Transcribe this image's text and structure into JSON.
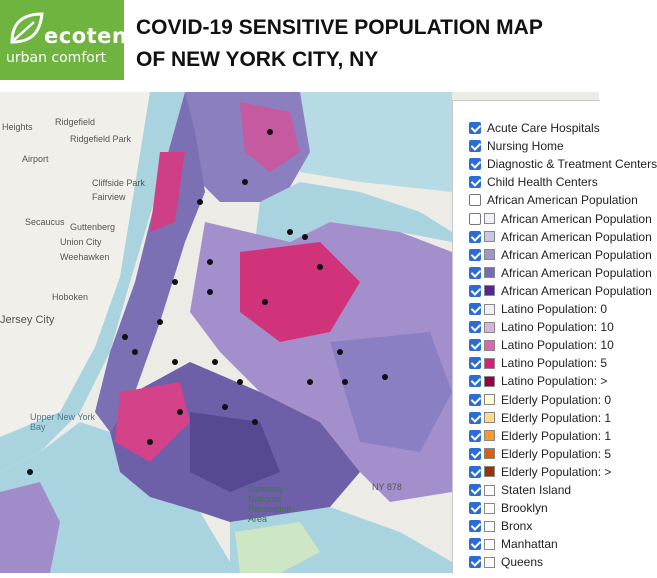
{
  "brand": {
    "name_line1": "ecoten",
    "name_line2": "urban comfort",
    "accent": "#6fb43f"
  },
  "title": {
    "line1": "COVID-19 SENSITIVE POPULATION MAP",
    "line2": "OF NEW YORK CITY, NY"
  },
  "map": {
    "place_labels": [
      "Heights",
      "Ridgefield",
      "Ridgefield Park",
      "Airport",
      "Cliffside Park",
      "Fairview",
      "Secaucus",
      "Guttenberg",
      "Union City",
      "Weehawken",
      "Hoboken",
      "Jersey City",
      "Upper New York Bay",
      "Gateway National Recreation Area",
      "NY 878"
    ],
    "colors": {
      "water": "#a9d3df",
      "land": "#ecebe6",
      "park": "#cfe6c4",
      "african_american": "#6d5fa8",
      "latino": "#d1337a"
    }
  },
  "legend": {
    "items": [
      {
        "label": "Acute Care Hospitals",
        "checked": true,
        "swatch": null
      },
      {
        "label": "Nursing Home",
        "checked": true,
        "swatch": null
      },
      {
        "label": "Diagnostic & Treatment Centers",
        "checked": true,
        "swatch": null
      },
      {
        "label": "Child Health Centers",
        "checked": true,
        "swatch": null
      },
      {
        "label": "African American Population",
        "checked": false,
        "swatch": null
      },
      {
        "label": "African American Population",
        "checked": false,
        "swatch": "#f2f0f7"
      },
      {
        "label": "African American Population",
        "checked": true,
        "swatch": "#cbc9e2"
      },
      {
        "label": "African American Population",
        "checked": true,
        "swatch": "#9e9ac8"
      },
      {
        "label": "African American Population",
        "checked": true,
        "swatch": "#756bb1"
      },
      {
        "label": "African American Population",
        "checked": true,
        "swatch": "#54278f"
      },
      {
        "label": "Latino Population: 0",
        "checked": true,
        "swatch": "#f1eef6"
      },
      {
        "label": "Latino Population: 10",
        "checked": true,
        "swatch": "#d7b5d8"
      },
      {
        "label": "Latino Population: 10",
        "checked": true,
        "swatch": "#df65b0"
      },
      {
        "label": "Latino Population: 5",
        "checked": true,
        "swatch": "#dd1c77"
      },
      {
        "label": "Latino Population: >",
        "checked": true,
        "swatch": "#980043"
      },
      {
        "label": "Elderly Population: 0",
        "checked": true,
        "swatch": "#ffffd4"
      },
      {
        "label": "Elderly Population: 1",
        "checked": true,
        "swatch": "#fed98e"
      },
      {
        "label": "Elderly Population: 1",
        "checked": true,
        "swatch": "#fe9929"
      },
      {
        "label": "Elderly Population: 5",
        "checked": true,
        "swatch": "#d95f0e"
      },
      {
        "label": "Elderly Population: >",
        "checked": true,
        "swatch": "#993404"
      },
      {
        "label": "Staten Island",
        "checked": true,
        "swatch": "#ffffff"
      },
      {
        "label": "Brooklyn",
        "checked": true,
        "swatch": "#ffffff"
      },
      {
        "label": "Bronx",
        "checked": true,
        "swatch": "#ffffff"
      },
      {
        "label": "Manhattan",
        "checked": true,
        "swatch": "#ffffff"
      },
      {
        "label": "Queens",
        "checked": true,
        "swatch": "#ffffff"
      }
    ]
  }
}
